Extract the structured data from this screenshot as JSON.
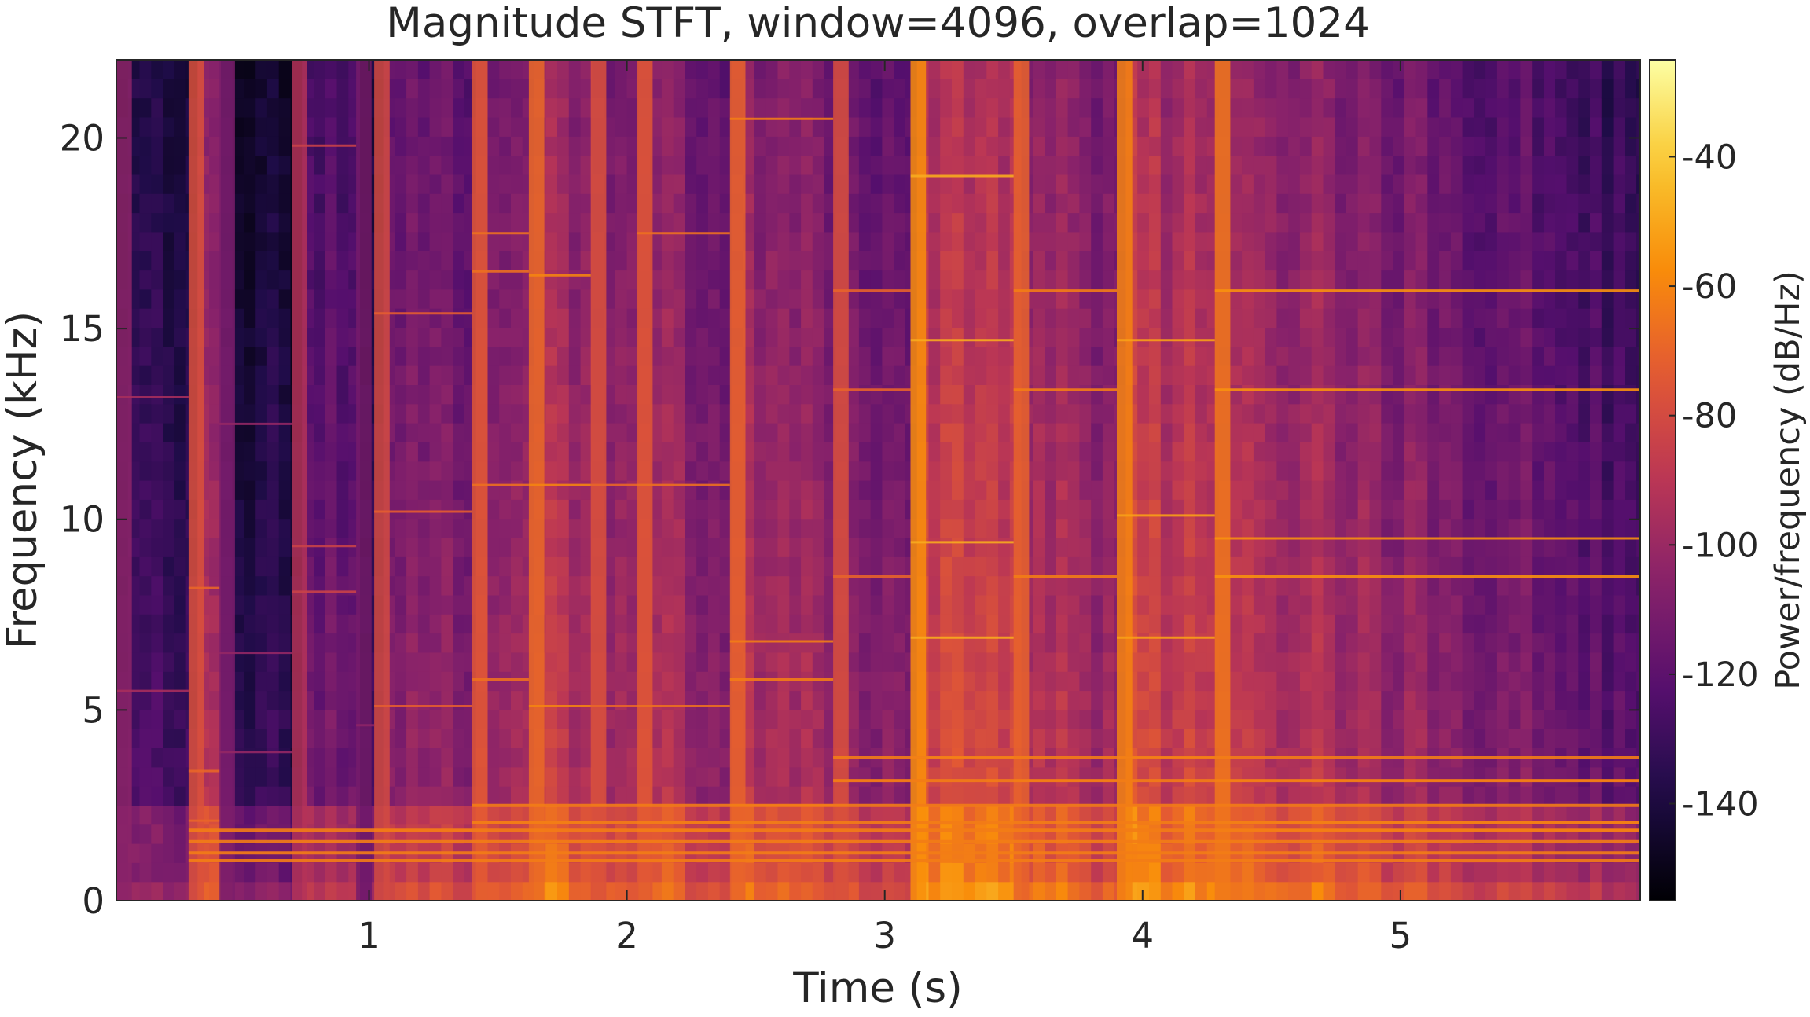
{
  "chart_data": {
    "type": "heatmap",
    "title": "Magnitude STFT, window=4096, overlap=1024",
    "xlabel": "Time (s)",
    "ylabel": "Frequency (kHz)",
    "xlim": [
      0.02,
      5.93
    ],
    "ylim": [
      0,
      22.05
    ],
    "xticks": [
      {
        "value": 1,
        "label": "1"
      },
      {
        "value": 2,
        "label": "2"
      },
      {
        "value": 3,
        "label": "3"
      },
      {
        "value": 4,
        "label": "4"
      },
      {
        "value": 5,
        "label": "5"
      }
    ],
    "yticks": [
      {
        "value": 0,
        "label": "0"
      },
      {
        "value": 5,
        "label": "5"
      },
      {
        "value": 10,
        "label": "10"
      },
      {
        "value": 15,
        "label": "15"
      },
      {
        "value": 20,
        "label": "20"
      }
    ],
    "colorbar": {
      "label": "Power/frequency (dB/Hz)",
      "range": [
        -155,
        -25
      ],
      "colormap": "inferno",
      "ticks": [
        {
          "value": -40,
          "label": "-40"
        },
        {
          "value": -60,
          "label": "-60"
        },
        {
          "value": -80,
          "label": "-80"
        },
        {
          "value": -100,
          "label": "-100"
        },
        {
          "value": -120,
          "label": "-120"
        },
        {
          "value": -140,
          "label": "-140"
        }
      ]
    },
    "note_onsets": [
      {
        "t": 0.02,
        "end": 0.3,
        "db": -122,
        "partials": [
          5.5,
          13.2
        ]
      },
      {
        "t": 0.3,
        "end": 0.42,
        "db": -95,
        "partials": [
          1.05,
          2.1,
          3.4,
          8.2
        ]
      },
      {
        "t": 0.42,
        "end": 0.7,
        "db": -128,
        "partials": [
          1.25,
          3.9,
          6.5,
          12.5
        ]
      },
      {
        "t": 0.7,
        "end": 0.95,
        "db": -110,
        "partials": [
          1.55,
          8.1,
          9.3,
          19.8
        ]
      },
      {
        "t": 0.95,
        "end": 1.02,
        "db": -130,
        "partials": [
          1.55,
          4.6
        ]
      },
      {
        "t": 1.02,
        "end": 1.4,
        "db": -98,
        "partials": [
          1.85,
          5.1,
          10.2,
          15.4
        ]
      },
      {
        "t": 1.4,
        "end": 1.62,
        "db": -92,
        "partials": [
          2.05,
          5.8,
          10.9,
          16.5,
          17.5
        ]
      },
      {
        "t": 1.62,
        "end": 1.86,
        "db": -86,
        "partials": [
          2.05,
          5.1,
          10.9,
          16.4
        ]
      },
      {
        "t": 1.86,
        "end": 2.04,
        "db": -95,
        "partials": [
          1.55,
          5.1,
          10.9
        ]
      },
      {
        "t": 2.04,
        "end": 2.4,
        "db": -92,
        "partials": [
          1.85,
          2.05,
          5.1,
          10.9,
          17.5
        ]
      },
      {
        "t": 2.4,
        "end": 2.8,
        "db": -88,
        "partials": [
          2.5,
          5.8,
          6.8,
          20.5
        ]
      },
      {
        "t": 2.8,
        "end": 3.1,
        "db": -96,
        "partials": [
          3.15,
          8.5,
          13.4,
          16.0
        ]
      },
      {
        "t": 3.1,
        "end": 3.5,
        "db": -75,
        "partials": [
          3.75,
          6.9,
          9.4,
          14.7,
          19.0
        ]
      },
      {
        "t": 3.5,
        "end": 3.9,
        "db": -88,
        "partials": [
          3.15,
          8.5,
          13.4,
          16.0
        ]
      },
      {
        "t": 3.9,
        "end": 4.28,
        "db": -78,
        "partials": [
          3.75,
          6.9,
          10.1,
          14.7
        ]
      },
      {
        "t": 4.28,
        "end": 5.93,
        "db": -82,
        "partials": [
          1.85,
          2.05,
          3.15,
          8.5,
          9.5,
          13.4,
          16.0
        ]
      }
    ],
    "sustained_partials_khz": [
      1.05,
      1.25,
      1.55,
      1.85,
      2.05,
      2.5,
      3.15,
      3.75
    ]
  }
}
